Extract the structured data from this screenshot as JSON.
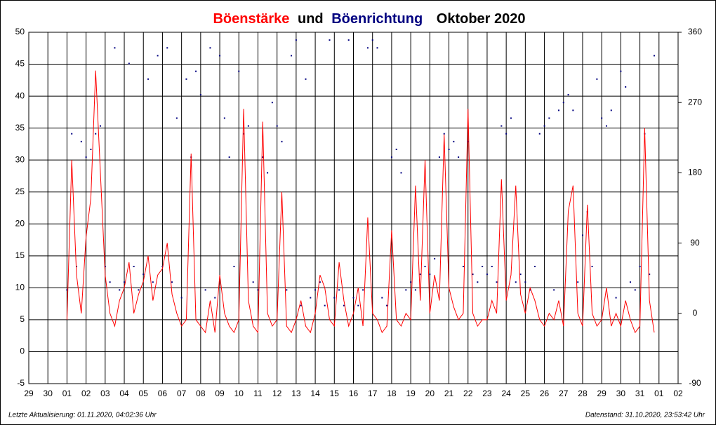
{
  "chart_data": {
    "type": "line",
    "title_connector": "und",
    "title_period": "Oktober 2020",
    "footer_left": "Letzte Aktualisierung: 01.11.2020, 04:02:36 Uhr",
    "footer_right": "Datenstand: 31.10.2020, 23:53:42 Uhr",
    "xlim": [
      0,
      34
    ],
    "xticks": [
      {
        "value": 0,
        "label": "29"
      },
      {
        "value": 1,
        "label": "30"
      },
      {
        "value": 2,
        "label": "01"
      },
      {
        "value": 3,
        "label": "02"
      },
      {
        "value": 4,
        "label": "03"
      },
      {
        "value": 5,
        "label": "04"
      },
      {
        "value": 6,
        "label": "05"
      },
      {
        "value": 7,
        "label": "06"
      },
      {
        "value": 8,
        "label": "07"
      },
      {
        "value": 9,
        "label": "08"
      },
      {
        "value": 10,
        "label": "09"
      },
      {
        "value": 11,
        "label": "10"
      },
      {
        "value": 12,
        "label": "11"
      },
      {
        "value": 13,
        "label": "12"
      },
      {
        "value": 14,
        "label": "13"
      },
      {
        "value": 15,
        "label": "14"
      },
      {
        "value": 16,
        "label": "15"
      },
      {
        "value": 17,
        "label": "16"
      },
      {
        "value": 18,
        "label": "17"
      },
      {
        "value": 19,
        "label": "18"
      },
      {
        "value": 20,
        "label": "19"
      },
      {
        "value": 21,
        "label": "20"
      },
      {
        "value": 22,
        "label": "21"
      },
      {
        "value": 23,
        "label": "22"
      },
      {
        "value": 24,
        "label": "23"
      },
      {
        "value": 25,
        "label": "24"
      },
      {
        "value": 26,
        "label": "25"
      },
      {
        "value": 27,
        "label": "26"
      },
      {
        "value": 28,
        "label": "27"
      },
      {
        "value": 29,
        "label": "28"
      },
      {
        "value": 30,
        "label": "29"
      },
      {
        "value": 31,
        "label": "30"
      },
      {
        "value": 32,
        "label": "31"
      },
      {
        "value": 33,
        "label": "01"
      },
      {
        "value": 34,
        "label": "02"
      }
    ],
    "ylim": [
      -5,
      50
    ],
    "yticks": [
      -5,
      0,
      5,
      10,
      15,
      20,
      25,
      30,
      35,
      40,
      45,
      50
    ],
    "y2lim": [
      -90,
      360
    ],
    "y2ticks": [
      -90,
      0,
      90,
      180,
      270,
      360
    ],
    "grid": true,
    "x": [
      2,
      2.25,
      2.5,
      2.75,
      3,
      3.25,
      3.5,
      3.75,
      4,
      4.25,
      4.5,
      4.75,
      5,
      5.25,
      5.5,
      5.75,
      6,
      6.25,
      6.5,
      6.75,
      7,
      7.25,
      7.5,
      7.75,
      8,
      8.25,
      8.5,
      8.75,
      9,
      9.25,
      9.5,
      9.75,
      10,
      10.25,
      10.5,
      10.75,
      11,
      11.25,
      11.5,
      11.75,
      12,
      12.25,
      12.5,
      12.75,
      13,
      13.25,
      13.5,
      13.75,
      14,
      14.25,
      14.5,
      14.75,
      15,
      15.25,
      15.5,
      15.75,
      16,
      16.25,
      16.5,
      16.75,
      17,
      17.25,
      17.5,
      17.75,
      18,
      18.25,
      18.5,
      18.75,
      19,
      19.25,
      19.5,
      19.75,
      20,
      20.25,
      20.5,
      20.75,
      21,
      21.25,
      21.5,
      21.75,
      22,
      22.25,
      22.5,
      22.75,
      23,
      23.25,
      23.5,
      23.75,
      24,
      24.25,
      24.5,
      24.75,
      25,
      25.25,
      25.5,
      25.75,
      26,
      26.25,
      26.5,
      26.75,
      27,
      27.25,
      27.5,
      27.75,
      28,
      28.25,
      28.5,
      28.75,
      29,
      29.25,
      29.5,
      29.75,
      30,
      30.25,
      30.5,
      30.75,
      31,
      31.25,
      31.5,
      31.75,
      32,
      32.25,
      32.5,
      32.75
    ],
    "series": [
      {
        "name": "Böenstärke",
        "color": "#ff0000",
        "axis": "y",
        "kind": "line",
        "values": [
          5,
          30,
          12,
          6,
          18,
          24,
          44,
          28,
          12,
          6,
          4,
          8,
          10,
          14,
          6,
          9,
          11,
          15,
          8,
          12,
          13,
          17,
          9,
          6,
          4,
          5,
          31,
          5,
          4,
          3,
          8,
          3,
          12,
          6,
          4,
          3,
          5,
          38,
          8,
          4,
          3,
          36,
          6,
          4,
          5,
          25,
          4,
          3,
          5,
          8,
          4,
          3,
          6,
          12,
          10,
          5,
          4,
          14,
          8,
          4,
          6,
          10,
          4,
          21,
          6,
          5,
          3,
          4,
          19,
          5,
          4,
          6,
          5,
          26,
          8,
          30,
          6,
          12,
          8,
          34,
          10,
          7,
          5,
          6,
          38,
          6,
          4,
          5,
          5,
          8,
          6,
          27,
          8,
          12,
          26,
          9,
          6,
          10,
          8,
          5,
          4,
          6,
          5,
          8,
          4,
          22,
          26,
          6,
          4,
          23,
          6,
          4,
          5,
          10,
          4,
          6,
          4,
          8,
          5,
          3,
          4,
          35,
          8,
          3
        ]
      },
      {
        "name": "Böenrichtung",
        "color": "#000080",
        "axis": "y2",
        "kind": "scatter",
        "values": [
          30,
          230,
          60,
          220,
          200,
          210,
          230,
          240,
          60,
          40,
          340,
          30,
          40,
          320,
          60,
          30,
          50,
          300,
          40,
          330,
          60,
          340,
          40,
          250,
          20,
          300,
          200,
          310,
          280,
          30,
          340,
          20,
          330,
          250,
          200,
          60,
          310,
          230,
          240,
          40,
          30,
          200,
          180,
          270,
          240,
          220,
          30,
          330,
          350,
          10,
          300,
          20,
          30,
          40,
          10,
          350,
          20,
          30,
          10,
          350,
          20,
          10,
          30,
          340,
          350,
          340,
          20,
          10,
          200,
          210,
          180,
          30,
          40,
          30,
          50,
          60,
          50,
          70,
          200,
          230,
          210,
          220,
          200,
          60,
          220,
          50,
          40,
          60,
          50,
          60,
          40,
          240,
          230,
          250,
          40,
          50,
          40,
          30,
          60,
          230,
          240,
          250,
          30,
          260,
          270,
          280,
          260,
          40,
          100,
          130,
          60,
          300,
          250,
          240,
          260,
          20,
          310,
          290,
          40,
          30,
          60,
          230,
          50,
          330
        ]
      }
    ]
  }
}
